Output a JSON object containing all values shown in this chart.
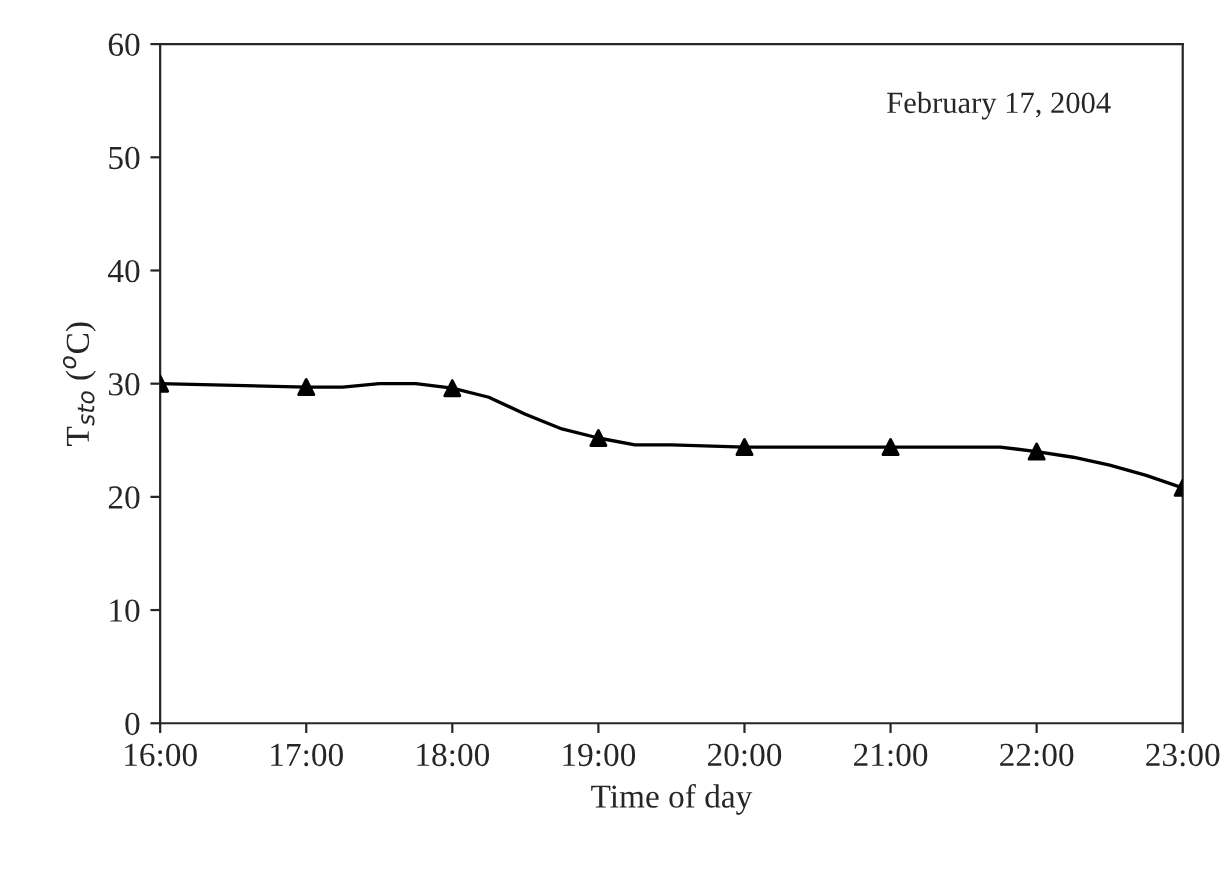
{
  "chart_data": {
    "type": "line",
    "xlabel": "Time of day",
    "ylabel": "T$_{sto}$ ($^{o}$C)",
    "annotations": [
      "February 17, 2004"
    ],
    "xlim": [
      16,
      23
    ],
    "xticks": [
      {
        "value": 16,
        "label": "16:00"
      },
      {
        "value": 17,
        "label": "17:00"
      },
      {
        "value": 18,
        "label": "18:00"
      },
      {
        "value": 19,
        "label": "19:00"
      },
      {
        "value": 20,
        "label": "20:00"
      },
      {
        "value": 21,
        "label": "21:00"
      },
      {
        "value": 22,
        "label": "22:00"
      },
      {
        "value": 23,
        "label": "23:00"
      }
    ],
    "ylim": [
      0,
      60
    ],
    "yticks": [
      0,
      10,
      20,
      30,
      40,
      50,
      60
    ],
    "grid": false,
    "legend": false,
    "series": [
      {
        "color": "#000000",
        "marker": "none",
        "x": [
          16,
          17,
          17.25,
          17.5,
          17.75,
          18,
          18.25,
          18.5,
          18.75,
          19,
          19.25,
          19.5,
          20,
          20.5,
          21,
          21.5,
          21.75,
          22,
          22.25,
          22.5,
          22.75,
          23
        ],
        "values": [
          30,
          29.7,
          29.7,
          30,
          30,
          29.6,
          28.8,
          27.3,
          26,
          25.2,
          24.6,
          24.6,
          24.4,
          24.4,
          24.4,
          24.4,
          24.4,
          24,
          23.5,
          22.8,
          21.9,
          20.8
        ]
      },
      {
        "type": "scatter",
        "color": "#000000",
        "marker": "triangle",
        "x": [
          16,
          17,
          18,
          19,
          20,
          21,
          22,
          23
        ],
        "values": [
          30,
          29.7,
          29.6,
          25.2,
          24.4,
          24.4,
          24,
          20.8
        ]
      }
    ]
  }
}
